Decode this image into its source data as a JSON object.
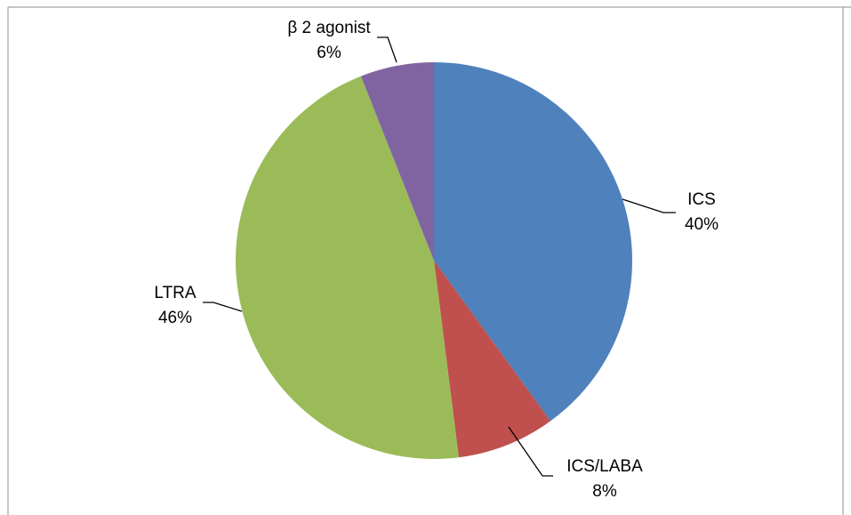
{
  "chart_data": {
    "type": "pie",
    "title": "",
    "slices": [
      {
        "name": "ICS",
        "value": 40,
        "pct_label": "40%",
        "color": "#4F81BD"
      },
      {
        "name": "ICS/LABA",
        "value": 8,
        "pct_label": "8%",
        "color": "#C0504D"
      },
      {
        "name": "LTRA",
        "value": 46,
        "pct_label": "46%",
        "color": "#9BBB59"
      },
      {
        "name": "β 2 agonist",
        "value": 6,
        "pct_label": "6%",
        "color": "#8064A2"
      }
    ],
    "start_direction": "12 o'clock",
    "rotation": "clockwise",
    "legend": "none",
    "labels": "outside with leader lines"
  }
}
